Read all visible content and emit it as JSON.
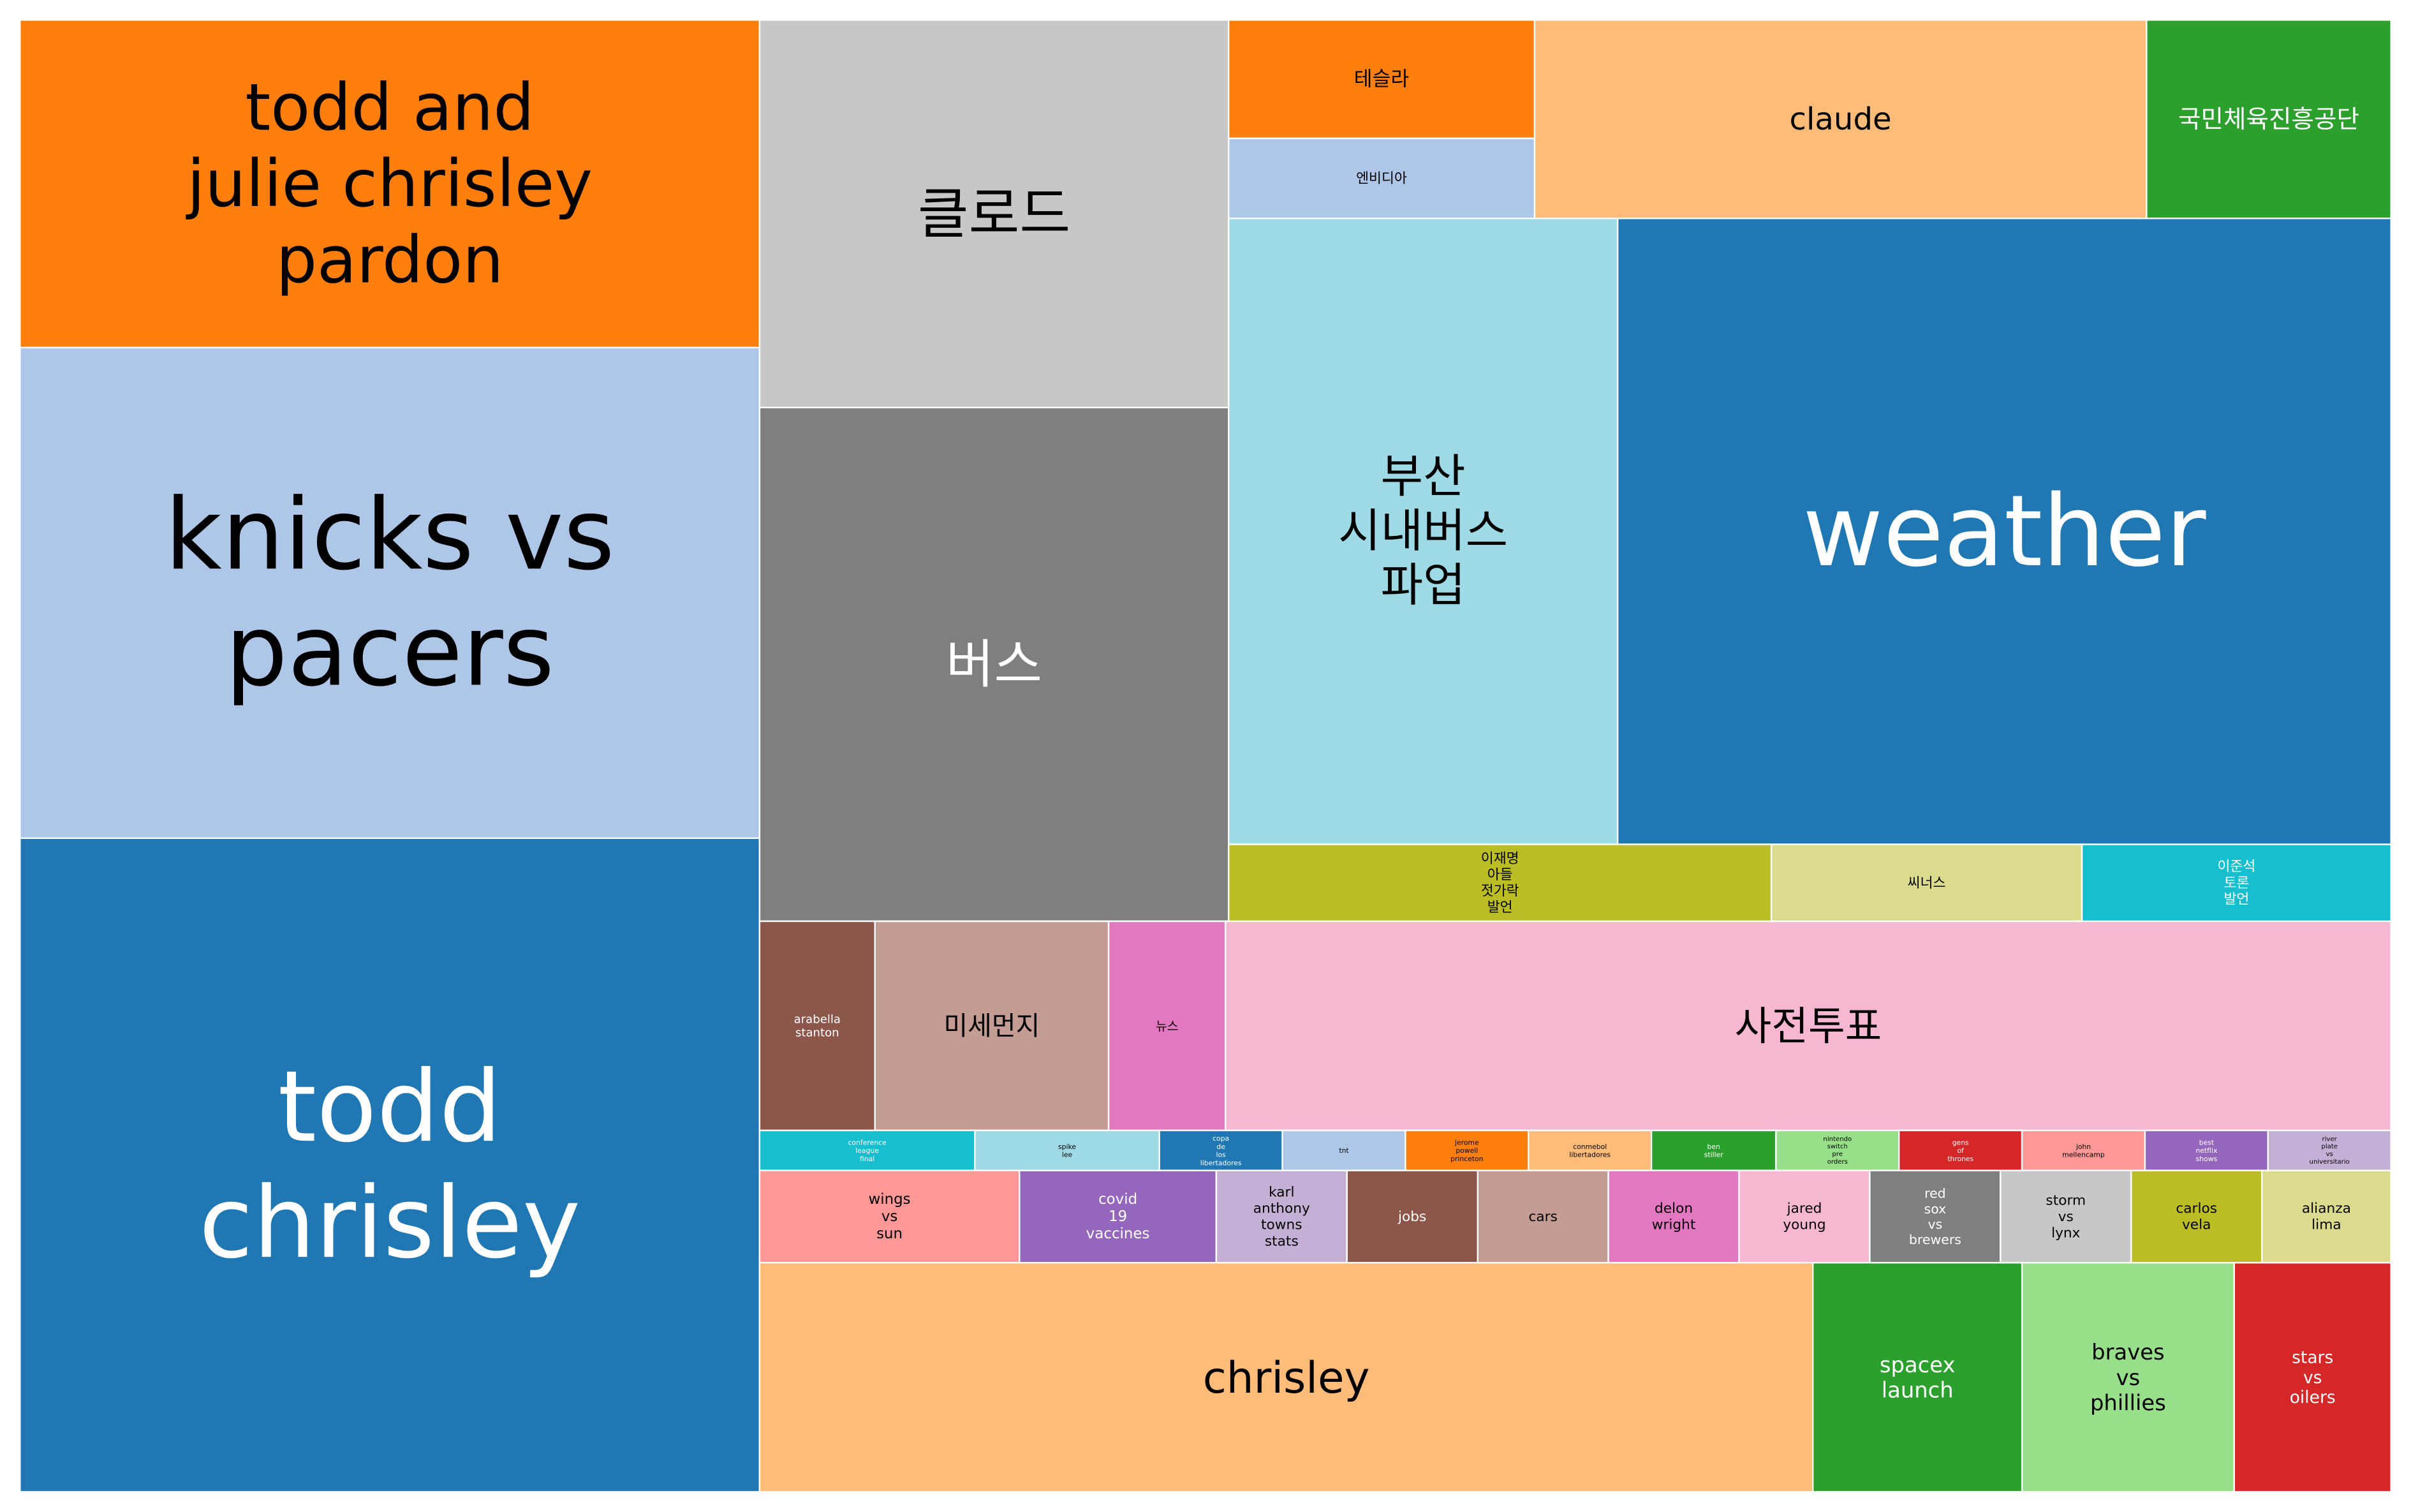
{
  "chart_data": {
    "type": "treemap",
    "colors": {
      "blue": "#1f77b4",
      "light_blue": "#aec7e8",
      "orange": "#ff7f0e",
      "light_orange": "#ffbb78",
      "green": "#2ca02c",
      "light_green": "#98df8a",
      "red": "#d62728",
      "light_red": "#ff9896",
      "purple": "#9467bd",
      "light_purple": "#c5b0d5",
      "brown": "#8c564b",
      "light_brown": "#c49c94",
      "pink": "#e377c2",
      "light_pink": "#f7b6d2",
      "gray": "#7f7f7f",
      "light_gray": "#c7c7c7",
      "olive": "#bcbd22",
      "light_olive": "#dbdb8d",
      "cyan": "#17becf",
      "light_cyan": "#9edae5",
      "border": "#ffffff"
    },
    "items": [
      {
        "label": "todd chrisley",
        "value": 49530,
        "color": "#1f77b4"
      },
      {
        "label": "knicks vs pacers",
        "value": 33280,
        "color": "#aec7e8"
      },
      {
        "label": "todd and julie chrisley pardon",
        "value": 22180,
        "color": "#ff7f0e"
      },
      {
        "label": "weather",
        "value": 26760,
        "color": "#1f77b4"
      },
      {
        "label": "버스",
        "value": 24540,
        "color": "#7f7f7f"
      },
      {
        "label": "부산 시내버스 파업",
        "value": 16550,
        "color": "#9edae5"
      },
      {
        "label": "클로드",
        "value": 19260,
        "color": "#c7c7c7"
      },
      {
        "label": "chrisley",
        "value": 16610,
        "color": "#ffbb78"
      },
      {
        "label": "사전투표",
        "value": 16660,
        "color": "#f7b6d2"
      },
      {
        "label": "claude",
        "value": 8320,
        "color": "#ffbb78"
      },
      {
        "label": "미세먼지",
        "value": 5250,
        "color": "#c49c94"
      },
      {
        "label": "이재명 아들 젓가락 발언",
        "value": 4630,
        "color": "#bcbd22"
      },
      {
        "label": "braves vs phillies",
        "value": 3330,
        "color": "#98df8a"
      },
      {
        "label": "spacex launch",
        "value": 3340,
        "color": "#2ca02c"
      },
      {
        "label": "테슬라",
        "value": 3310,
        "color": "#ff7f0e"
      },
      {
        "label": "stars vs oilers",
        "value": 2500,
        "color": "#d62728"
      },
      {
        "label": "국민체육진흥공단",
        "value": 2510,
        "color": "#2ca02c"
      },
      {
        "label": "씨너스",
        "value": 2650,
        "color": "#dbdb8d"
      },
      {
        "label": "이준석 토론 발언",
        "value": 2640,
        "color": "#17becf"
      },
      {
        "label": "뉴스",
        "value": 2560,
        "color": "#e377c2"
      },
      {
        "label": "엔비디아",
        "value": 2060,
        "color": "#aec7e8"
      },
      {
        "label": "wings vs sun",
        "value": 2590,
        "color": "#ff9896"
      },
      {
        "label": "covid 19 vaccines",
        "value": 1990,
        "color": "#9467bd"
      },
      {
        "label": "arabella stanton",
        "value": 2570,
        "color": "#8c564b"
      },
      {
        "label": "karl anthony towns stats",
        "value": 1330,
        "color": "#c5b0d5"
      },
      {
        "label": "jobs",
        "value": 1330,
        "color": "#8c564b"
      },
      {
        "label": "cars",
        "value": 1330,
        "color": "#c49c94"
      },
      {
        "label": "delon wright",
        "value": 1330,
        "color": "#e377c2"
      },
      {
        "label": "jared young",
        "value": 1330,
        "color": "#f7b6d2"
      },
      {
        "label": "red sox vs brewers",
        "value": 1330,
        "color": "#7f7f7f"
      },
      {
        "label": "storm vs lynx",
        "value": 1330,
        "color": "#c7c7c7"
      },
      {
        "label": "carlos vela",
        "value": 1330,
        "color": "#bcbd22"
      },
      {
        "label": "alianza lima",
        "value": 1330,
        "color": "#dbdb8d"
      },
      {
        "label": "conference league final",
        "value": 660,
        "color": "#17becf"
      },
      {
        "label": "spike lee",
        "value": 660,
        "color": "#9edae5"
      },
      {
        "label": "copa de los libertadores",
        "value": 440,
        "color": "#1f77b4"
      },
      {
        "label": "tnt",
        "value": 440,
        "color": "#aec7e8"
      },
      {
        "label": "jerome powell princeton",
        "value": 440,
        "color": "#ff7f0e"
      },
      {
        "label": "conmebol libertadores",
        "value": 440,
        "color": "#ffbb78"
      },
      {
        "label": "ben stiller",
        "value": 440,
        "color": "#2ca02c"
      },
      {
        "label": "nintendo switch pre orders",
        "value": 440,
        "color": "#98df8a"
      },
      {
        "label": "gens of thrones",
        "value": 440,
        "color": "#d62728"
      },
      {
        "label": "john mellencamp",
        "value": 440,
        "color": "#ff9896"
      },
      {
        "label": "best netflix shows",
        "value": 440,
        "color": "#9467bd"
      },
      {
        "label": "river plate vs universitario",
        "value": 440,
        "color": "#c5b0d5"
      }
    ]
  }
}
